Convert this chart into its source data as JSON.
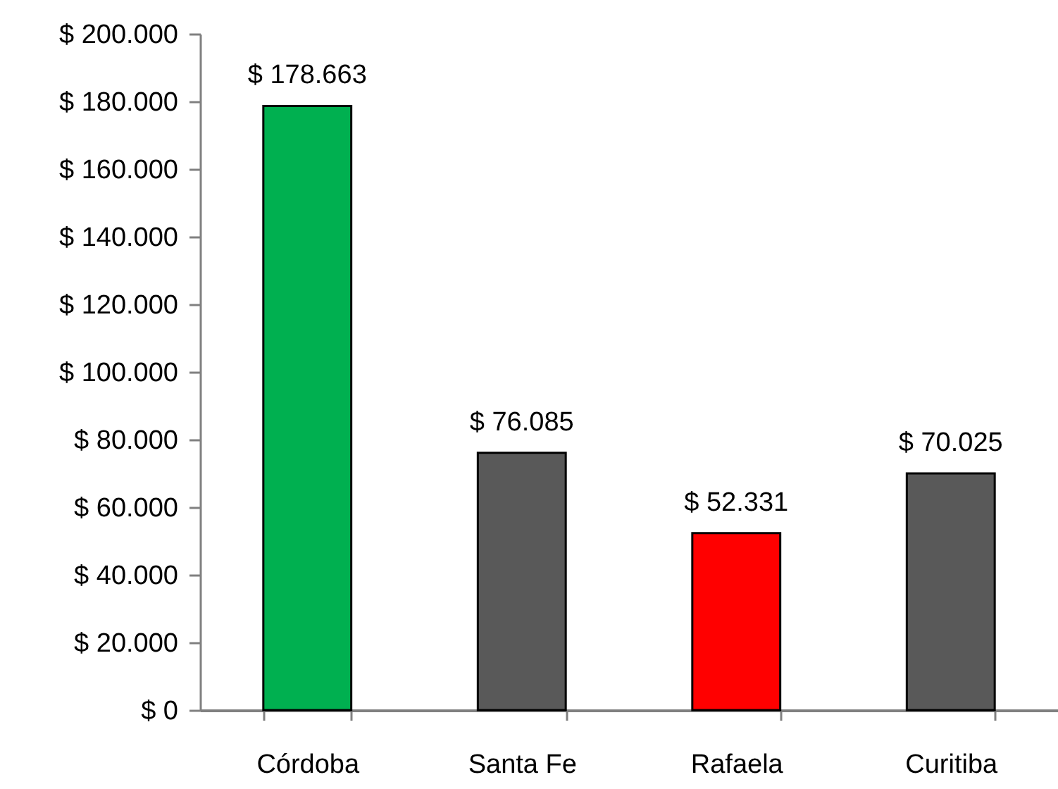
{
  "chart_data": {
    "type": "bar",
    "categories": [
      "Córdoba",
      "Santa Fe",
      "Rafaela",
      "Curitiba"
    ],
    "values": [
      178663,
      76085,
      52331,
      70025
    ],
    "colors": [
      "#00b050",
      "#595959",
      "#ff0000",
      "#595959"
    ],
    "value_labels": [
      "$ 178.663",
      "$ 76.085",
      "$ 52.331",
      "$ 70.025"
    ],
    "ylim": [
      0,
      200000
    ],
    "yticks": [
      {
        "value": 0,
        "label": "$ 0"
      },
      {
        "value": 20000,
        "label": "$ 20.000"
      },
      {
        "value": 40000,
        "label": "$ 40.000"
      },
      {
        "value": 60000,
        "label": "$ 60.000"
      },
      {
        "value": 80000,
        "label": "$ 80.000"
      },
      {
        "value": 100000,
        "label": "$ 100.000"
      },
      {
        "value": 120000,
        "label": "$ 120.000"
      },
      {
        "value": 140000,
        "label": "$ 140.000"
      },
      {
        "value": 160000,
        "label": "$ 160.000"
      },
      {
        "value": 180000,
        "label": "$ 180.000"
      },
      {
        "value": 200000,
        "label": "$ 200.000"
      }
    ]
  }
}
